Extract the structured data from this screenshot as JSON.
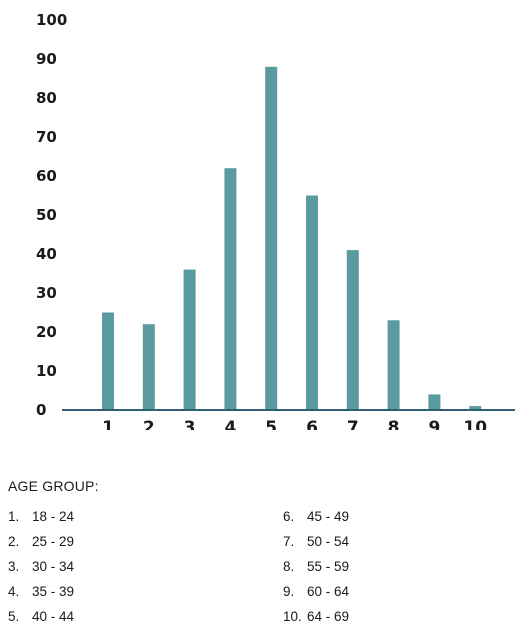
{
  "chart_data": {
    "type": "bar",
    "categories": [
      "1",
      "2",
      "3",
      "4",
      "5",
      "6",
      "7",
      "8",
      "9",
      "10"
    ],
    "values": [
      25,
      22,
      36,
      62,
      88,
      55,
      41,
      23,
      4,
      1
    ],
    "yticks": [
      "0",
      "10",
      "20",
      "30",
      "40",
      "50",
      "60",
      "70",
      "80",
      "90",
      "100"
    ],
    "ylim": [
      0,
      100
    ],
    "grid": false,
    "bar_color": "#5a9ba0",
    "axis_color": "#2f5f73"
  },
  "legend": {
    "title": "AGE GROUP:",
    "items": [
      {
        "num": "1.",
        "range": "18 - 24"
      },
      {
        "num": "2.",
        "range": "25 - 29"
      },
      {
        "num": "3.",
        "range": "30 - 34"
      },
      {
        "num": "4.",
        "range": "35 - 39"
      },
      {
        "num": "5.",
        "range": "40 - 44"
      },
      {
        "num": "6.",
        "range": "45 - 49"
      },
      {
        "num": "7.",
        "range": "50 - 54"
      },
      {
        "num": "8.",
        "range": "55 - 59"
      },
      {
        "num": "9.",
        "range": "60 - 64"
      },
      {
        "num": "10.",
        "range": "64 - 69"
      }
    ]
  }
}
